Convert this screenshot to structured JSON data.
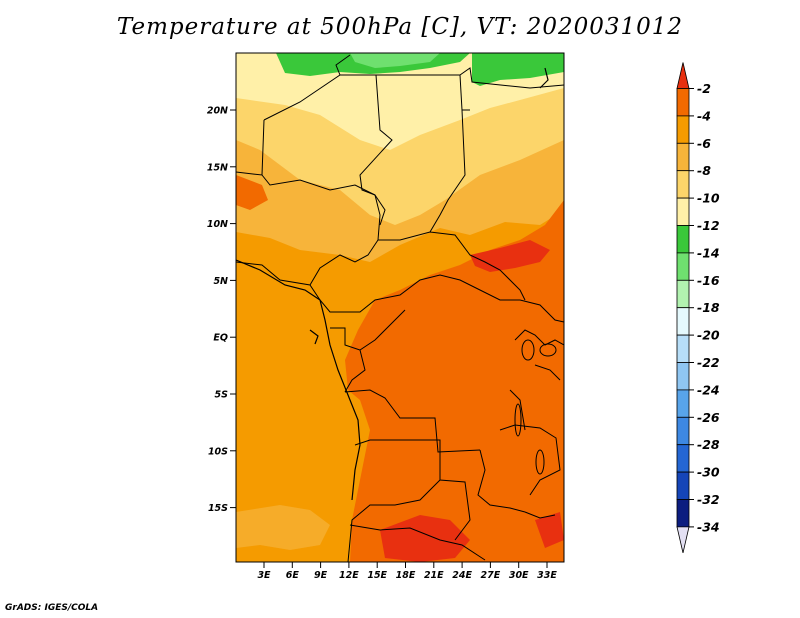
{
  "title": "Temperature at 500hPa [C], VT: 2020031012",
  "credit": "GrADS: IGES/COLA",
  "lat_labels": [
    "20N",
    "15N",
    "10N",
    "5N",
    "EQ",
    "5S",
    "10S",
    "15S"
  ],
  "lon_labels": [
    "3E",
    "6E",
    "9E",
    "12E",
    "15E",
    "18E",
    "21E",
    "24E",
    "27E",
    "30E",
    "33E"
  ],
  "colorbar": {
    "labels": [
      "-2",
      "-4",
      "-6",
      "-8",
      "-10",
      "-12",
      "-14",
      "-16",
      "-18",
      "-20",
      "-22",
      "-24",
      "-26",
      "-28",
      "-30",
      "-32",
      "-34"
    ],
    "colors": [
      "#e83010",
      "#f26a00",
      "#f59b00",
      "#f7b43a",
      "#fcd56a",
      "#fff0a8",
      "#3ac83a",
      "#6fe06f",
      "#b2f2b0",
      "#e5f9fd",
      "#b7def8",
      "#8fc6f2",
      "#58a4ea",
      "#3d88e3",
      "#2466d3",
      "#1545b8",
      "#0c1d80",
      "#e3e0f3"
    ]
  }
}
